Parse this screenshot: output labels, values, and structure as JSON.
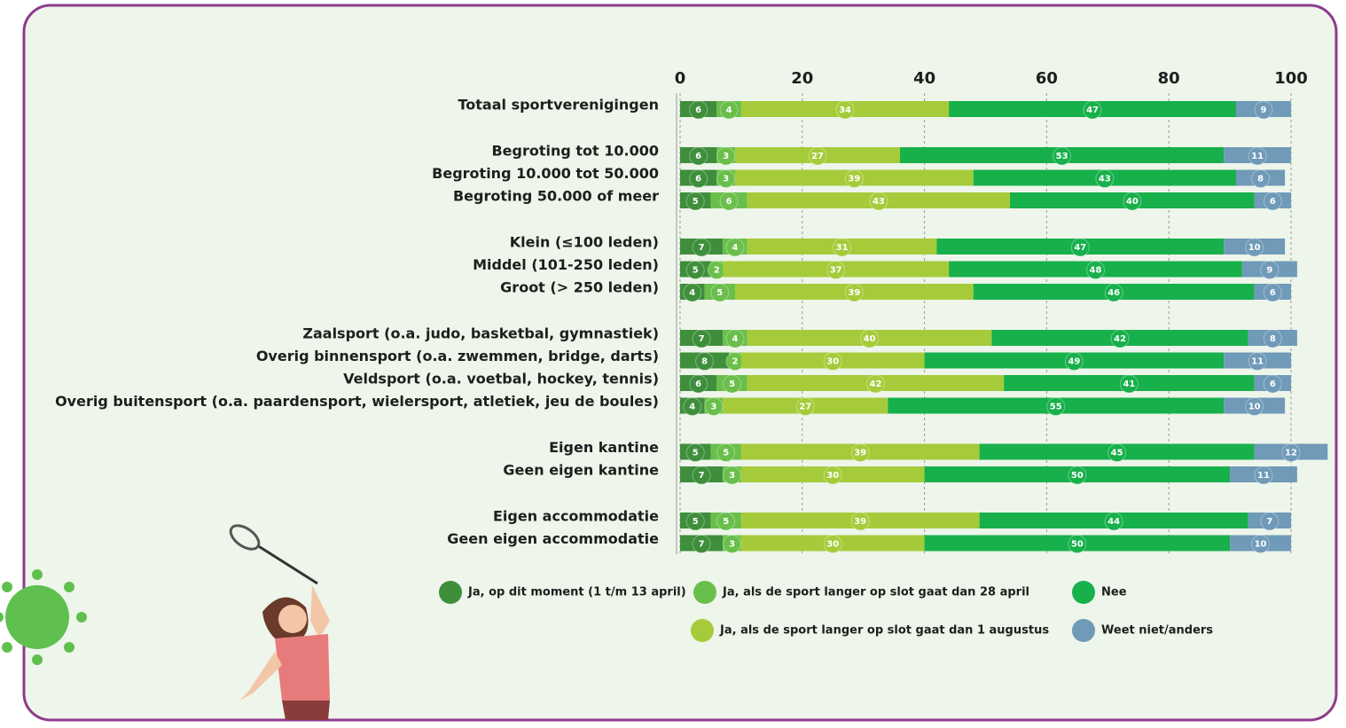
{
  "chart_data": {
    "type": "stacked-barh",
    "categories": [
      "Totaal sportverenigingen",
      "Begroting tot 10.000",
      "Begroting 10.000 tot 50.000",
      "Begroting 50.000 of meer",
      "Klein (≤100 leden)",
      "Middel (101-250 leden)",
      "Groot (> 250 leden)",
      "Zaalsport (o.a. judo, basketbal, gymnastiek)",
      "Overig binnensport (o.a. zwemmen, bridge, darts)",
      "Veldsport (o.a. voetbal, hockey, tennis)",
      "Overig buitensport (o.a. paardensport, wielersport, atletiek, jeu de boules)",
      "Eigen kantine",
      "Geen eigen kantine",
      "Eigen accommodatie",
      "Geen eigen accommodatie"
    ],
    "series": [
      {
        "name": "Ja, op dit moment (1 t/m 13 april)",
        "color": "#3e8e3c",
        "values": [
          6,
          6,
          6,
          5,
          7,
          5,
          4,
          7,
          8,
          6,
          4,
          5,
          7,
          5,
          7
        ]
      },
      {
        "name": "Ja, als de sport langer op slot gaat dan 28 april",
        "color": "#6abf4b",
        "values": [
          4,
          3,
          3,
          6,
          4,
          2,
          5,
          4,
          2,
          5,
          3,
          5,
          3,
          5,
          3
        ]
      },
      {
        "name": "Ja, als de sport langer op slot gaat dan 1 augustus",
        "color": "#a6cb3a",
        "values": [
          34,
          27,
          39,
          43,
          31,
          37,
          39,
          40,
          30,
          42,
          27,
          39,
          30,
          39,
          30
        ]
      },
      {
        "name": "Nee",
        "color": "#17b04b",
        "values": [
          47,
          53,
          43,
          40,
          47,
          48,
          46,
          42,
          49,
          41,
          55,
          45,
          50,
          44,
          50
        ]
      },
      {
        "name": "Weet niet/anders",
        "color": "#6f9ab8",
        "values": [
          9,
          11,
          8,
          6,
          10,
          9,
          6,
          8,
          11,
          6,
          10,
          12,
          11,
          7,
          10
        ]
      }
    ],
    "xlim": [
      0,
      100
    ],
    "xticks": [
      0,
      20,
      40,
      60,
      80,
      100
    ],
    "grid": true
  }
}
